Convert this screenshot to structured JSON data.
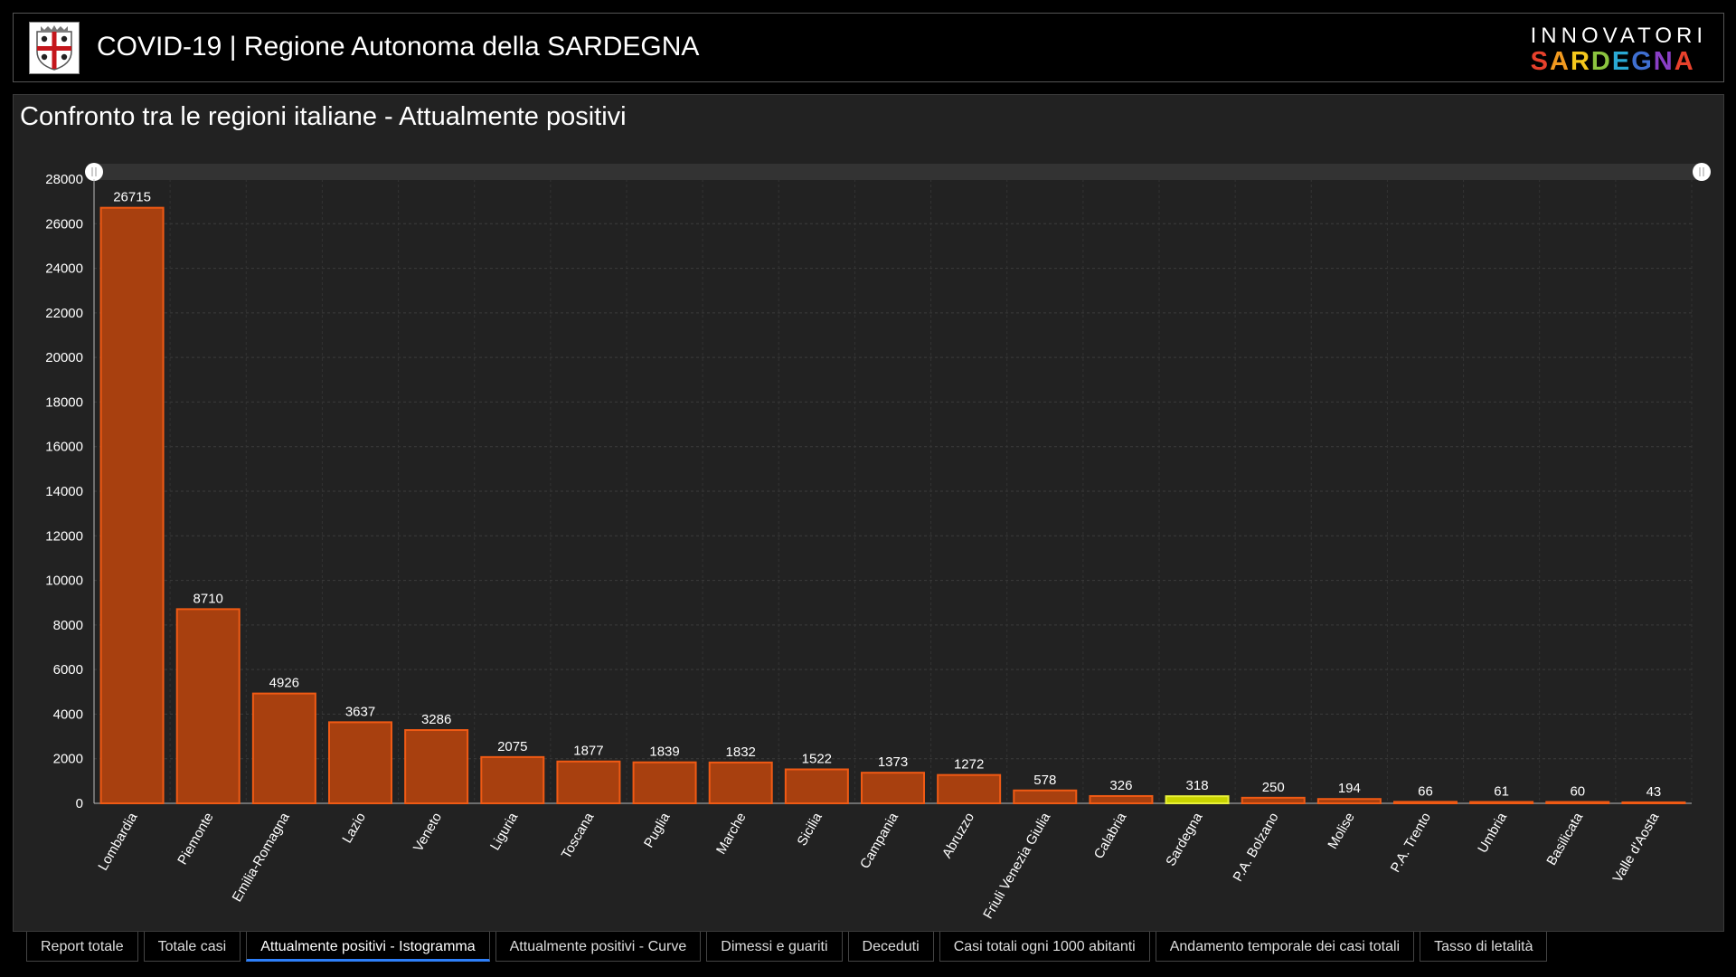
{
  "header": {
    "title": "COVID-19 | Regione Autonoma della SARDEGNA",
    "brand_top": "INNOVATORI",
    "brand_bottom": [
      "S",
      "A",
      "R",
      "D",
      "E",
      "G",
      "N",
      "A"
    ],
    "brand_colors": [
      "#e8412c",
      "#f29a1f",
      "#f5c81c",
      "#8cc43f",
      "#2aa9d4",
      "#3f6fd1",
      "#8a3fc6",
      "#e8412c"
    ],
    "logo_icon": "sardinia-coat-of-arms"
  },
  "chart_data": {
    "type": "bar",
    "title": "Confronto tra le regioni italiane - Attualmente positivi",
    "categories": [
      "Lombardia",
      "Piemonte",
      "Emilia-Romagna",
      "Lazio",
      "Veneto",
      "Liguria",
      "Toscana",
      "Puglia",
      "Marche",
      "Sicilia",
      "Campania",
      "Abruzzo",
      "Friuli Venezia Giulia",
      "Calabria",
      "Sardegna",
      "P.A. Bolzano",
      "Molise",
      "P.A. Trento",
      "Umbria",
      "Basilicata",
      "Valle d'Aosta"
    ],
    "values": [
      26715,
      8710,
      4926,
      3637,
      3286,
      2075,
      1877,
      1839,
      1832,
      1522,
      1373,
      1272,
      578,
      326,
      318,
      250,
      194,
      66,
      61,
      60,
      43
    ],
    "ylim": [
      0,
      28000
    ],
    "yticks": [
      0,
      2000,
      4000,
      6000,
      8000,
      10000,
      12000,
      14000,
      16000,
      18000,
      20000,
      22000,
      24000,
      26000,
      28000
    ],
    "highlight": "Sardegna",
    "bar_color": "#a8400f",
    "bar_edge": "#f05a14",
    "highlight_color": "#c9d400",
    "highlight_edge": "#e8f03a",
    "grid": true
  },
  "tabs": [
    {
      "label": "Report totale",
      "active": false
    },
    {
      "label": "Totale casi",
      "active": false
    },
    {
      "label": "Attualmente positivi - Istogramma",
      "active": true
    },
    {
      "label": "Attualmente positivi - Curve",
      "active": false
    },
    {
      "label": "Dimessi e guariti",
      "active": false
    },
    {
      "label": "Deceduti",
      "active": false
    },
    {
      "label": "Casi totali ogni 1000 abitanti",
      "active": false
    },
    {
      "label": "Andamento temporale dei casi totali",
      "active": false
    },
    {
      "label": "Tasso di letalità",
      "active": false
    }
  ]
}
